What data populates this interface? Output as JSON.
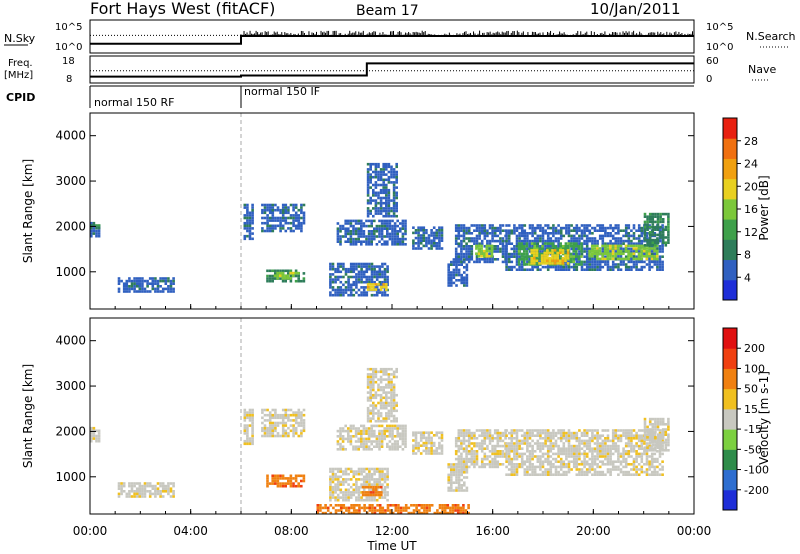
{
  "header": {
    "title": "Fort Hays West (fitACF)",
    "beam": "Beam 17",
    "date": "10/Jan/2011"
  },
  "aux_panels": {
    "nsky_label": "N.Sky",
    "nsearch_label": "N.Search",
    "freq_label": "Freq.",
    "freq_unit": "[MHz]",
    "nave_label": "Nave",
    "cpid_label": "CPID",
    "nsky_ticks": [
      "10^5",
      "10^0"
    ],
    "nsearch_ticks": [
      "10^5",
      "10^0"
    ],
    "freq_ticks": [
      "18",
      "8"
    ],
    "nave_ticks": [
      "60",
      "0"
    ],
    "cpid_segments": [
      {
        "label": "normal 150 RF",
        "start_hour": 0
      },
      {
        "label": "normal 150 IF",
        "start_hour": 6
      }
    ]
  },
  "x_axis": {
    "label": "Time UT",
    "ticks": [
      "00:00",
      "04:00",
      "08:00",
      "12:00",
      "16:00",
      "20:00",
      "00:00"
    ]
  },
  "colorbars": {
    "power": {
      "label": "Power [dB]",
      "ticks": [
        "28",
        "24",
        "20",
        "16",
        "12",
        "8",
        "4"
      ],
      "colors": [
        "#1e2ed8",
        "#3060c0",
        "#2e7d5a",
        "#3ea04a",
        "#7cc83a",
        "#e8d020",
        "#f0a010",
        "#f07010",
        "#e82010"
      ]
    },
    "velocity": {
      "label": "Velocity [m s-1]",
      "ticks": [
        "200",
        "100",
        "50",
        "15",
        "-15",
        "-50",
        "-100",
        "-200"
      ],
      "colors": [
        "#1e2ed8",
        "#2e6ed0",
        "#2e8c4a",
        "#7cd040",
        "#c8c8c0",
        "#f0c020",
        "#f08010",
        "#f04010",
        "#e01010"
      ]
    }
  },
  "chart_data": [
    {
      "type": "line",
      "title": "N.Sky / N.Search",
      "x_units": "hours UT",
      "xlim": [
        0,
        24
      ],
      "series": [
        {
          "name": "N.Sky",
          "x": [
            0,
            6,
            6,
            24
          ],
          "values": [
            1.2,
            1.2,
            2.5,
            2.5
          ]
        },
        {
          "name": "N.Search",
          "x": [
            0,
            6,
            24
          ],
          "values": [
            2.6,
            2.6,
            2.6
          ]
        }
      ],
      "ylim": [
        0,
        5
      ]
    },
    {
      "type": "line",
      "title": "Freq / Nave",
      "x_units": "hours UT",
      "xlim": [
        0,
        24
      ],
      "series": [
        {
          "name": "Freq. [MHz]",
          "x": [
            0,
            6,
            6,
            11,
            11,
            24
          ],
          "values": [
            10,
            10,
            10.5,
            10.5,
            16,
            16
          ]
        },
        {
          "name": "Nave",
          "x": [
            0,
            24
          ],
          "values": [
            28,
            28
          ]
        }
      ]
    },
    {
      "type": "heatmap",
      "title": "Power",
      "xlabel": "Time UT",
      "ylabel": "Slant Range [km]",
      "xlim": [
        0,
        24
      ],
      "ylim": [
        180,
        4500
      ],
      "y_ticks": [
        1000,
        2000,
        3000,
        4000
      ],
      "colorbar": "Power [dB]",
      "patches": [
        {
          "t0": 0.0,
          "t1": 0.35,
          "r0": 1800,
          "r1": 2100,
          "level": 1
        },
        {
          "t0": 0.0,
          "t1": 0.35,
          "r0": 1950,
          "r1": 2050,
          "level": 2
        },
        {
          "t0": 1.1,
          "t1": 3.3,
          "r0": 580,
          "r1": 880,
          "level": 1
        },
        {
          "t0": 6.1,
          "t1": 6.5,
          "r0": 1700,
          "r1": 2500,
          "level": 1
        },
        {
          "t0": 6.8,
          "t1": 8.5,
          "r0": 1900,
          "r1": 2500,
          "level": 1
        },
        {
          "t0": 7.0,
          "t1": 8.5,
          "r0": 800,
          "r1": 1050,
          "level": 2
        },
        {
          "t0": 7.3,
          "t1": 8.3,
          "r0": 870,
          "r1": 1000,
          "level": 4
        },
        {
          "t0": 9.8,
          "t1": 12.5,
          "r0": 1600,
          "r1": 2150,
          "level": 1
        },
        {
          "t0": 11.0,
          "t1": 12.2,
          "r0": 2200,
          "r1": 3400,
          "level": 1
        },
        {
          "t0": 9.5,
          "t1": 11.8,
          "r0": 500,
          "r1": 1200,
          "level": 1
        },
        {
          "t0": 11.0,
          "t1": 11.8,
          "r0": 600,
          "r1": 750,
          "level": 5
        },
        {
          "t0": 12.8,
          "t1": 14.0,
          "r0": 1500,
          "r1": 2000,
          "level": 1
        },
        {
          "t0": 14.2,
          "t1": 15.0,
          "r0": 700,
          "r1": 1300,
          "level": 1
        },
        {
          "t0": 14.5,
          "t1": 16.5,
          "r0": 1200,
          "r1": 2050,
          "level": 1
        },
        {
          "t0": 15.3,
          "t1": 16.0,
          "r0": 1350,
          "r1": 1600,
          "level": 4
        },
        {
          "t0": 16.5,
          "t1": 22.8,
          "r0": 1050,
          "r1": 2050,
          "level": 1
        },
        {
          "t0": 17.0,
          "t1": 19.5,
          "r0": 1150,
          "r1": 1650,
          "level": 3
        },
        {
          "t0": 17.5,
          "t1": 19.0,
          "r0": 1200,
          "r1": 1500,
          "level": 5
        },
        {
          "t0": 19.8,
          "t1": 22.5,
          "r0": 1300,
          "r1": 1600,
          "level": 4
        },
        {
          "t0": 22.0,
          "t1": 23.0,
          "r0": 1600,
          "r1": 2300,
          "level": 2
        }
      ]
    },
    {
      "type": "heatmap",
      "title": "Velocity",
      "xlabel": "Time UT",
      "ylabel": "Slant Range [km]",
      "xlim": [
        0,
        24
      ],
      "ylim": [
        180,
        4500
      ],
      "y_ticks": [
        1000,
        2000,
        3000,
        4000
      ],
      "colorbar": "Velocity [m s-1]",
      "patches": [
        {
          "t0": 0.0,
          "t1": 0.35,
          "r0": 1800,
          "r1": 2100,
          "level": 4
        },
        {
          "t0": 1.1,
          "t1": 3.3,
          "r0": 580,
          "r1": 880,
          "level": 4
        },
        {
          "t0": 6.1,
          "t1": 6.5,
          "r0": 1700,
          "r1": 2500,
          "level": 4
        },
        {
          "t0": 6.8,
          "t1": 8.5,
          "r0": 1900,
          "r1": 2500,
          "level": 4
        },
        {
          "t0": 7.0,
          "t1": 8.5,
          "r0": 800,
          "r1": 1050,
          "level": 6
        },
        {
          "t0": 9.8,
          "t1": 12.5,
          "r0": 1600,
          "r1": 2150,
          "level": 4
        },
        {
          "t0": 11.0,
          "t1": 12.2,
          "r0": 2200,
          "r1": 3400,
          "level": 4
        },
        {
          "t0": 9.5,
          "t1": 11.8,
          "r0": 500,
          "r1": 1200,
          "level": 4
        },
        {
          "t0": 10.8,
          "t1": 11.6,
          "r0": 600,
          "r1": 800,
          "level": 6
        },
        {
          "t0": 12.8,
          "t1": 14.0,
          "r0": 1500,
          "r1": 2000,
          "level": 4
        },
        {
          "t0": 14.2,
          "t1": 15.0,
          "r0": 700,
          "r1": 1300,
          "level": 4
        },
        {
          "t0": 14.5,
          "t1": 16.5,
          "r0": 1200,
          "r1": 2050,
          "level": 4
        },
        {
          "t0": 16.5,
          "t1": 22.8,
          "r0": 1050,
          "r1": 2050,
          "level": 4
        },
        {
          "t0": 22.0,
          "t1": 23.0,
          "r0": 1600,
          "r1": 2300,
          "level": 4
        },
        {
          "t0": 9.0,
          "t1": 15.0,
          "r0": 200,
          "r1": 400,
          "level": 6
        }
      ]
    }
  ]
}
